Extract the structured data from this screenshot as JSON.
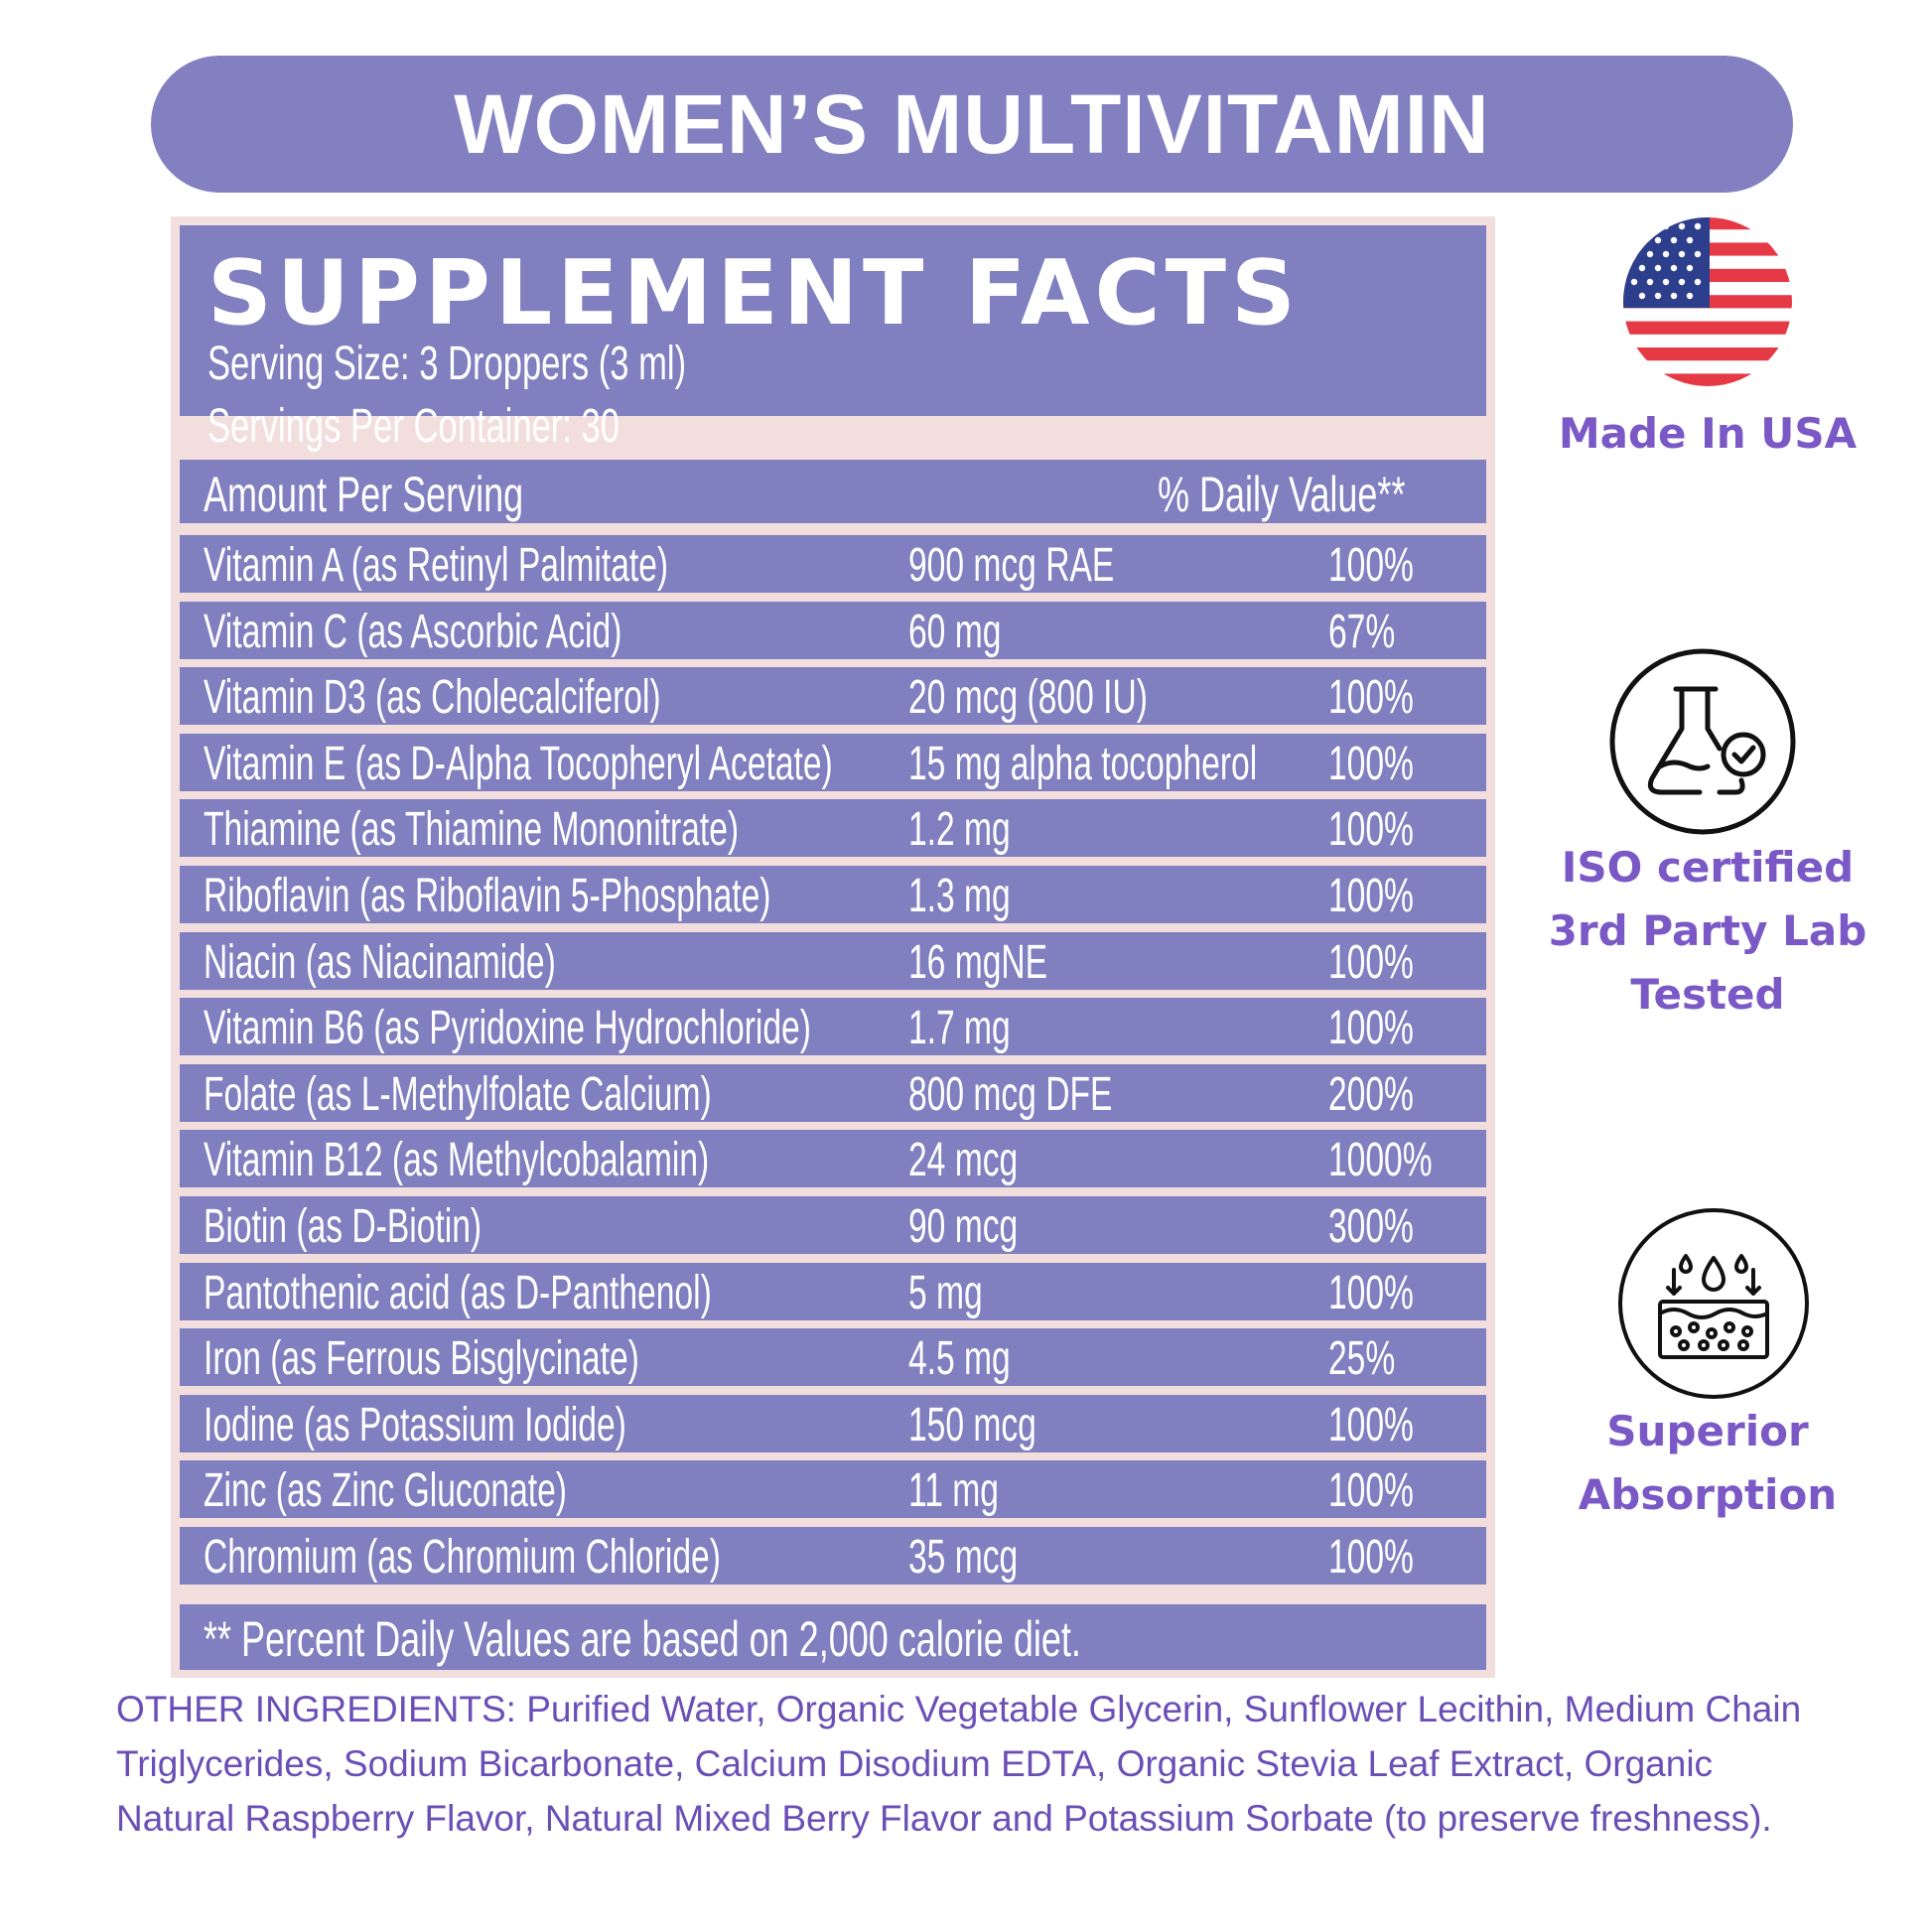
{
  "banner": {
    "title": "WOMEN’S MULTIVITAMIN"
  },
  "facts": {
    "title": "SUPPLEMENT FACTS",
    "serving_size": "Serving Size: 3 Droppers (3 ml)",
    "servings_per_container": "Servings Per Container: 30",
    "amount_header": "Amount Per Serving",
    "dv_header": "% Daily Value**",
    "rows": [
      {
        "name": "Vitamin A (as Retinyl Palmitate)",
        "amount": "900 mcg RAE",
        "dv": "100%"
      },
      {
        "name": "Vitamin C (as Ascorbic Acid)",
        "amount": "60 mg",
        "dv": "67%"
      },
      {
        "name": "Vitamin D3 (as Cholecalciferol)",
        "amount": "20 mcg (800 IU)",
        "dv": "100%"
      },
      {
        "name": "Vitamin E (as D-Alpha Tocopheryl Acetate)",
        "amount": "15 mg alpha tocopherol",
        "dv": "100%"
      },
      {
        "name": "Thiamine (as Thiamine Mononitrate)",
        "amount": "1.2 mg",
        "dv": "100%"
      },
      {
        "name": "Riboflavin (as Riboflavin 5-Phosphate)",
        "amount": "1.3 mg",
        "dv": "100%"
      },
      {
        "name": "Niacin (as Niacinamide)",
        "amount": "16 mgNE",
        "dv": "100%"
      },
      {
        "name": "Vitamin B6 (as Pyridoxine Hydrochloride)",
        "amount": "1.7 mg",
        "dv": "100%"
      },
      {
        "name": "Folate (as L-Methylfolate Calcium)",
        "amount": "800 mcg DFE",
        "dv": "200%"
      },
      {
        "name": "Vitamin B12 (as Methylcobalamin)",
        "amount": "24 mcg",
        "dv": "1000%"
      },
      {
        "name": "Biotin (as D-Biotin)",
        "amount": "90 mcg",
        "dv": "300%"
      },
      {
        "name": "Pantothenic acid (as D-Panthenol)",
        "amount": "5 mg",
        "dv": "100%"
      },
      {
        "name": "Iron (as Ferrous Bisglycinate)",
        "amount": "4.5 mg",
        "dv": "25%"
      },
      {
        "name": "Iodine (as Potassium Iodide)",
        "amount": "150 mcg",
        "dv": "100%"
      },
      {
        "name": "Zinc (as Zinc Gluconate)",
        "amount": "11 mg",
        "dv": "100%"
      },
      {
        "name": "Chromium (as Chromium Chloride)",
        "amount": "35 mcg",
        "dv": "100%"
      }
    ],
    "footnote": "** Percent Daily Values are based on 2,000 calorie diet."
  },
  "badges": {
    "usa": {
      "icon": "usa-flag-icon",
      "label": "Made In USA"
    },
    "lab": {
      "icon": "lab-flask-icon",
      "line1": "ISO certified",
      "line2": "3rd Party Lab",
      "line3": "Tested"
    },
    "absorption": {
      "icon": "absorption-icon",
      "line1": "Superior",
      "line2": "Absorption"
    }
  },
  "other_ingredients": "OTHER INGREDIENTS: Purified Water, Organic Vegetable Glycerin, Sunflower Lecithin, Medium Chain Triglycerides, Sodium Bicarbonate, Calcium Disodium EDTA, Organic Stevia Leaf Extract, Organic Natural Raspberry Flavor, Natural Mixed Berry Flavor and Potassium Sorbate (to preserve freshness).",
  "colors": {
    "accent": "#807fbf",
    "panel_border": "#f3dede",
    "label_purple": "#7a58c6",
    "text_purple": "#6a4fb6"
  }
}
